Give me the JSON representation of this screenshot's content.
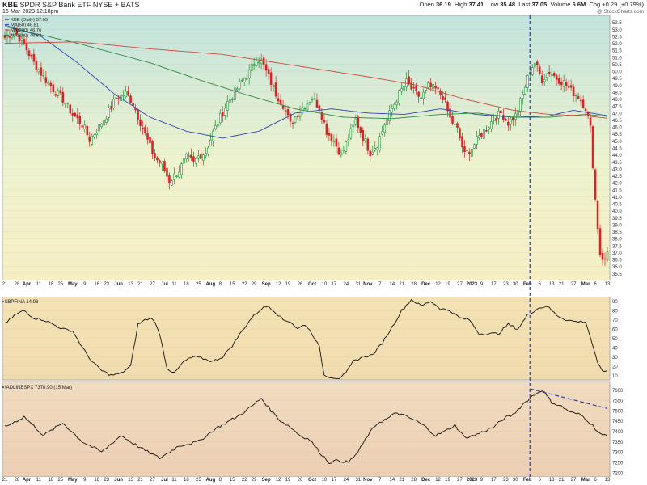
{
  "header": {
    "symbol": "KBE",
    "description": "SPDR S&P Bank ETF  NYSE + BATS",
    "date": "16-Mar-2023 12:18pm",
    "open_label": "Open",
    "open": "36.19",
    "high_label": "High",
    "high": "37.41",
    "low_label": "Low",
    "low": "35.48",
    "last_label": "Last",
    "last": "37.05",
    "volume_label": "Volume",
    "volume": "6.6M",
    "chg_label": "Chg",
    "chg": "+0.29 (+0.79%)",
    "watermark": "@ StockCharts.com"
  },
  "legend": {
    "price": "KBE (Daily) 37.05",
    "ma50": "MA(50) 46.81",
    "ma200": "MA(200) 46.76",
    "ma100": "MA(100) 46.63"
  },
  "colors": {
    "up": "#1e8f2e",
    "down": "#d62424",
    "ma50": "#3346b8",
    "ma200": "#2f8a3e",
    "ma100": "#d04a3a",
    "marker": "#1a3ad8",
    "trend": "#1a3ad8",
    "line": "#111111"
  },
  "x_labels": [
    "21",
    "28",
    "Apr",
    "11",
    "18",
    "25",
    "May",
    "9",
    "16",
    "23",
    "Jun",
    "13",
    "21",
    "27",
    "Jul",
    "11",
    "18",
    "25",
    "Aug",
    "8",
    "15",
    "22",
    "29",
    "Sep",
    "12",
    "19",
    "26",
    "Oct",
    "10",
    "17",
    "24",
    "31",
    "Nov",
    "7",
    "14",
    "21",
    "28",
    "Dec",
    "12",
    "19",
    "27",
    "2023",
    "9",
    "17",
    "23",
    "30",
    "Feb",
    "6",
    "13",
    "21",
    "27",
    "Mar",
    "6",
    "13"
  ],
  "chart_data": [
    {
      "type": "candlestick",
      "title": "KBE (Daily) 37.05",
      "ylim": [
        35.0,
        54.0
      ],
      "yticks": [
        35.5,
        36.0,
        36.5,
        37.0,
        37.5,
        38.0,
        38.5,
        39.0,
        39.5,
        40.0,
        40.5,
        41.0,
        41.5,
        42.0,
        42.5,
        43.0,
        43.5,
        44.0,
        44.5,
        45.0,
        45.5,
        46.0,
        46.5,
        47.0,
        47.5,
        48.0,
        48.5,
        49.0,
        49.5,
        50.0,
        50.5,
        51.0,
        51.5,
        52.0,
        52.5,
        53.0,
        53.5
      ],
      "close_anchors": [
        [
          0,
          52.4
        ],
        [
          4,
          52.9
        ],
        [
          8,
          51.9
        ],
        [
          12,
          50.6
        ],
        [
          16,
          49.6
        ],
        [
          20,
          48.7
        ],
        [
          24,
          48.0
        ],
        [
          28,
          46.9
        ],
        [
          32,
          46.2
        ],
        [
          35,
          45.1
        ],
        [
          39,
          46.0
        ],
        [
          43,
          47.1
        ],
        [
          46,
          48.1
        ],
        [
          50,
          48.4
        ],
        [
          53,
          47.7
        ],
        [
          57,
          45.9
        ],
        [
          60,
          44.6
        ],
        [
          62,
          43.8
        ],
        [
          65,
          43.3
        ],
        [
          68,
          42.1
        ],
        [
          72,
          42.9
        ],
        [
          75,
          43.8
        ],
        [
          78,
          43.4
        ],
        [
          80,
          43.9
        ],
        [
          83,
          44.2
        ],
        [
          86,
          45.6
        ],
        [
          89,
          46.7
        ],
        [
          92,
          47.8
        ],
        [
          95,
          48.5
        ],
        [
          98,
          49.3
        ],
        [
          101,
          49.9
        ],
        [
          104,
          51.0
        ],
        [
          106,
          50.7
        ],
        [
          109,
          49.6
        ],
        [
          112,
          48.4
        ],
        [
          115,
          47.6
        ],
        [
          118,
          46.2
        ],
        [
          121,
          47.0
        ],
        [
          124,
          47.6
        ],
        [
          127,
          48.1
        ],
        [
          130,
          47.4
        ],
        [
          133,
          45.7
        ],
        [
          136,
          45.0
        ],
        [
          139,
          44.0
        ],
        [
          142,
          45.2
        ],
        [
          145,
          46.5
        ],
        [
          148,
          45.3
        ],
        [
          151,
          44.2
        ],
        [
          154,
          44.8
        ],
        [
          157,
          46.2
        ],
        [
          160,
          47.3
        ],
        [
          163,
          48.4
        ],
        [
          166,
          49.2
        ],
        [
          169,
          48.5
        ],
        [
          172,
          48.1
        ],
        [
          175,
          48.9
        ],
        [
          178,
          48.7
        ],
        [
          181,
          48.2
        ],
        [
          184,
          46.6
        ],
        [
          187,
          45.8
        ],
        [
          190,
          44.0
        ],
        [
          193,
          44.5
        ],
        [
          196,
          45.3
        ],
        [
          199,
          45.9
        ],
        [
          202,
          46.6
        ],
        [
          205,
          47.0
        ],
        [
          208,
          46.3
        ],
        [
          211,
          46.8
        ],
        [
          214,
          48.3
        ],
        [
          217,
          50.1
        ],
        [
          219,
          50.6
        ],
        [
          222,
          49.4
        ],
        [
          225,
          50.0
        ],
        [
          228,
          49.5
        ],
        [
          231,
          49.2
        ],
        [
          234,
          48.6
        ],
        [
          237,
          48.2
        ],
        [
          240,
          47.4
        ],
        [
          242,
          45.9
        ],
        [
          244,
          40.8
        ],
        [
          246,
          36.9
        ],
        [
          248,
          36.4
        ],
        [
          249,
          37.05
        ]
      ],
      "series": [
        {
          "name": "MA(50) 46.81",
          "anchors": [
            [
              0,
              53.3
            ],
            [
              15,
              52.5
            ],
            [
              30,
              50.6
            ],
            [
              45,
              48.4
            ],
            [
              60,
              46.7
            ],
            [
              75,
              45.7
            ],
            [
              90,
              45.2
            ],
            [
              105,
              45.7
            ],
            [
              120,
              47.0
            ],
            [
              135,
              47.3
            ],
            [
              150,
              47.0
            ],
            [
              165,
              46.9
            ],
            [
              180,
              47.3
            ],
            [
              195,
              46.9
            ],
            [
              210,
              46.7
            ],
            [
              225,
              46.8
            ],
            [
              235,
              47.2
            ],
            [
              249,
              46.81
            ]
          ]
        },
        {
          "name": "MA(200) 46.76",
          "anchors": [
            [
              0,
              53.2
            ],
            [
              30,
              52.0
            ],
            [
              60,
              50.6
            ],
            [
              80,
              49.4
            ],
            [
              100,
              48.3
            ],
            [
              120,
              47.3
            ],
            [
              140,
              46.7
            ],
            [
              160,
              46.6
            ],
            [
              180,
              46.9
            ],
            [
              195,
              47.0
            ],
            [
              210,
              46.7
            ],
            [
              225,
              46.7
            ],
            [
              240,
              46.9
            ],
            [
              249,
              46.76
            ]
          ]
        },
        {
          "name": "MA(100) 46.63",
          "anchors": [
            [
              0,
              52.0
            ],
            [
              30,
              52.1
            ],
            [
              60,
              51.6
            ],
            [
              90,
              51.2
            ],
            [
              120,
              50.4
            ],
            [
              150,
              49.6
            ],
            [
              170,
              49.0
            ],
            [
              190,
              48.0
            ],
            [
              210,
              47.2
            ],
            [
              225,
              46.9
            ],
            [
              240,
              46.8
            ],
            [
              249,
              46.63
            ]
          ]
        }
      ]
    },
    {
      "type": "line",
      "title": "$BPFINA 14.93",
      "ylim": [
        5,
        95
      ],
      "yticks": [
        10,
        20,
        30,
        40,
        50,
        60,
        70,
        80,
        90
      ],
      "series": [
        {
          "name": "$BPFINA 14.93",
          "anchors": [
            [
              0,
              65
            ],
            [
              4,
              75
            ],
            [
              8,
              80
            ],
            [
              12,
              72
            ],
            [
              16,
              70
            ],
            [
              20,
              65
            ],
            [
              24,
              60
            ],
            [
              28,
              58
            ],
            [
              32,
              40
            ],
            [
              36,
              25
            ],
            [
              40,
              15
            ],
            [
              44,
              10
            ],
            [
              48,
              12
            ],
            [
              52,
              20
            ],
            [
              55,
              65
            ],
            [
              58,
              70
            ],
            [
              61,
              72
            ],
            [
              64,
              55
            ],
            [
              67,
              18
            ],
            [
              70,
              12
            ],
            [
              74,
              25
            ],
            [
              78,
              30
            ],
            [
              82,
              28
            ],
            [
              86,
              25
            ],
            [
              90,
              30
            ],
            [
              94,
              42
            ],
            [
              98,
              58
            ],
            [
              102,
              72
            ],
            [
              106,
              82
            ],
            [
              109,
              85
            ],
            [
              112,
              78
            ],
            [
              115,
              70
            ],
            [
              118,
              68
            ],
            [
              121,
              60
            ],
            [
              124,
              65
            ],
            [
              127,
              55
            ],
            [
              130,
              40
            ],
            [
              132,
              10
            ],
            [
              135,
              8
            ],
            [
              138,
              7
            ],
            [
              141,
              12
            ],
            [
              144,
              25
            ],
            [
              148,
              30
            ],
            [
              152,
              32
            ],
            [
              156,
              45
            ],
            [
              160,
              62
            ],
            [
              164,
              80
            ],
            [
              168,
              92
            ],
            [
              172,
              85
            ],
            [
              176,
              90
            ],
            [
              180,
              82
            ],
            [
              184,
              80
            ],
            [
              188,
              72
            ],
            [
              192,
              70
            ],
            [
              196,
              55
            ],
            [
              200,
              55
            ],
            [
              204,
              55
            ],
            [
              208,
              65
            ],
            [
              212,
              60
            ],
            [
              216,
              75
            ],
            [
              220,
              82
            ],
            [
              224,
              85
            ],
            [
              228,
              75
            ],
            [
              232,
              70
            ],
            [
              236,
              68
            ],
            [
              240,
              68
            ],
            [
              243,
              42
            ],
            [
              245,
              22
            ],
            [
              247,
              15
            ],
            [
              249,
              14.93
            ]
          ]
        }
      ]
    },
    {
      "type": "line",
      "title": "!ADLINESPX 7378.90 (15 Mar)",
      "ylim": [
        7180,
        7640
      ],
      "yticks": [
        7200,
        7250,
        7300,
        7350,
        7400,
        7450,
        7500,
        7550,
        7600
      ],
      "series": [
        {
          "name": "!ADLINESPX 7378.90 (15 Mar)",
          "anchors": [
            [
              0,
              7420
            ],
            [
              8,
              7470
            ],
            [
              16,
              7380
            ],
            [
              24,
              7440
            ],
            [
              32,
              7350
            ],
            [
              40,
              7300
            ],
            [
              48,
              7380
            ],
            [
              56,
              7320
            ],
            [
              64,
              7270
            ],
            [
              72,
              7330
            ],
            [
              80,
              7350
            ],
            [
              88,
              7420
            ],
            [
              96,
              7470
            ],
            [
              102,
              7520
            ],
            [
              106,
              7560
            ],
            [
              110,
              7500
            ],
            [
              114,
              7450
            ],
            [
              118,
              7420
            ],
            [
              122,
              7380
            ],
            [
              126,
              7360
            ],
            [
              130,
              7300
            ],
            [
              134,
              7250
            ],
            [
              138,
              7260
            ],
            [
              142,
              7250
            ],
            [
              146,
              7300
            ],
            [
              150,
              7380
            ],
            [
              154,
              7440
            ],
            [
              158,
              7460
            ],
            [
              162,
              7490
            ],
            [
              166,
              7470
            ],
            [
              170,
              7450
            ],
            [
              174,
              7420
            ],
            [
              178,
              7380
            ],
            [
              182,
              7400
            ],
            [
              186,
              7430
            ],
            [
              190,
              7370
            ],
            [
              194,
              7380
            ],
            [
              198,
              7400
            ],
            [
              202,
              7420
            ],
            [
              206,
              7460
            ],
            [
              210,
              7480
            ],
            [
              214,
              7530
            ],
            [
              218,
              7570
            ],
            [
              222,
              7600
            ],
            [
              226,
              7540
            ],
            [
              230,
              7520
            ],
            [
              234,
              7490
            ],
            [
              238,
              7480
            ],
            [
              242,
              7440
            ],
            [
              245,
              7400
            ],
            [
              247,
              7380
            ],
            [
              249,
              7378.9
            ]
          ]
        }
      ]
    }
  ],
  "annotations": {
    "marker_index": 217,
    "trendline": {
      "from": [
        217,
        7605
      ],
      "to": [
        249,
        7510
      ]
    }
  }
}
